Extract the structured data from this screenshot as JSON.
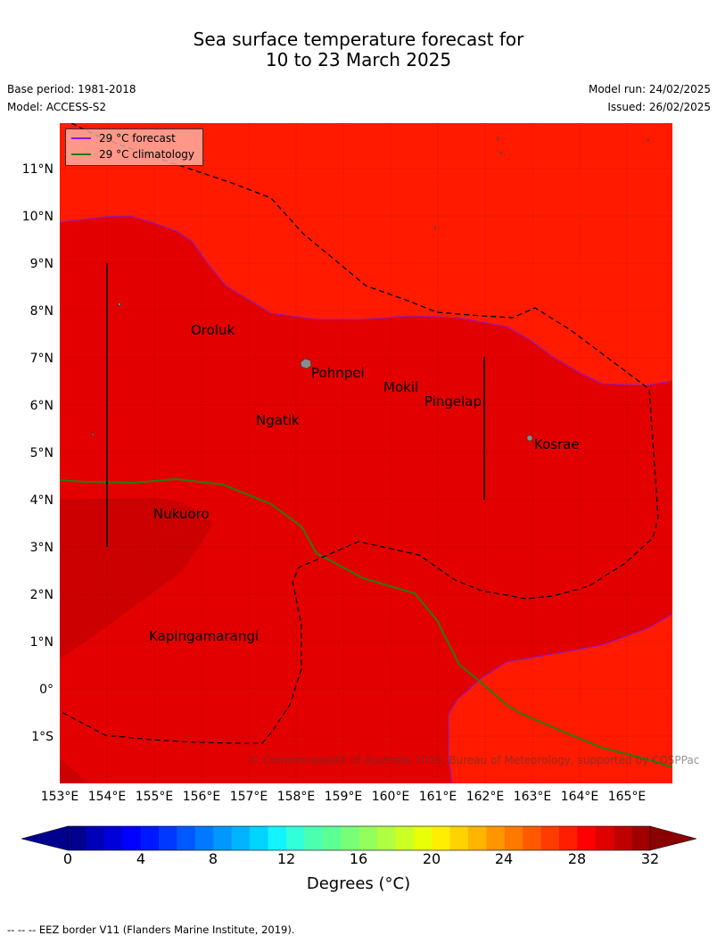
{
  "title": {
    "line1": "Sea surface temperature forecast for",
    "line2": "10 to 23 March 2025"
  },
  "meta": {
    "base_period": "Base period: 1981-2018",
    "model": "Model: ACCESS-S2",
    "model_run": "Model run: 24/02/2025",
    "issued": "Issued: 26/02/2025"
  },
  "map": {
    "lat_ticks": [
      "11°N",
      "10°N",
      "9°N",
      "8°N",
      "7°N",
      "6°N",
      "5°N",
      "4°N",
      "3°N",
      "2°N",
      "1°N",
      "0°",
      "1°S"
    ],
    "lon_ticks": [
      "153°E",
      "154°E",
      "155°E",
      "156°E",
      "157°E",
      "158°E",
      "159°E",
      "160°E",
      "161°E",
      "162°E",
      "163°E",
      "164°E",
      "165°E"
    ],
    "places": [
      "Oroluk",
      "Pohnpei",
      "Mokil",
      "Pingelap",
      "Ngatik",
      "Kosrae",
      "Nukuoro",
      "Kapingamarangi"
    ],
    "copyright": "© Commonwealth of Australia 2025, Bureau of Meteorology, supported by COSPPac",
    "colors": {
      "warm_31": "#ff1a00",
      "warm_30": "#e30000",
      "warm_29": "#cc0000",
      "forecast_line": "#8a1ad1",
      "climatology_line": "#2a7a10",
      "eez_line": "#000000"
    }
  },
  "legend": {
    "forecast": "29 °C  forecast",
    "climatology": "29 °C  climatology"
  },
  "colorbar": {
    "ticks": [
      "0",
      "4",
      "8",
      "12",
      "16",
      "20",
      "24",
      "28",
      "32"
    ],
    "label": "Degrees (°C)",
    "colors": [
      "#00008f",
      "#0000b8",
      "#0000dc",
      "#0000ff",
      "#0018ff",
      "#0038ff",
      "#0058ff",
      "#0078ff",
      "#0098ff",
      "#00b4ff",
      "#00d4ff",
      "#12f4ff",
      "#30ffda",
      "#4affb0",
      "#5cff94",
      "#78ff7a",
      "#94ff5c",
      "#b0ff40",
      "#ccff24",
      "#e8ff08",
      "#ffee00",
      "#ffd200",
      "#ffb400",
      "#ff9600",
      "#ff7800",
      "#ff5a00",
      "#ff3c00",
      "#ff1e00",
      "#ff0000",
      "#e00000",
      "#c00000",
      "#a00000"
    ]
  },
  "footnote": "--  --  -- EEZ border V11 (Flanders Marine Institute, 2019)."
}
